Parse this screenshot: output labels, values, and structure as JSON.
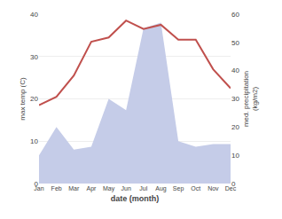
{
  "chart_data": {
    "type": "line",
    "categories": [
      "Jan",
      "Feb",
      "Mar",
      "Apr",
      "May",
      "Jun",
      "Jul",
      "Aug",
      "Sep",
      "Oct",
      "Nov",
      "Dec"
    ],
    "series": [
      {
        "type": "area",
        "axis": "y2",
        "color": "#c5cce8",
        "values": [
          10.0,
          20.0,
          12.0,
          13.0,
          30.0,
          26.0,
          55.0,
          57.0,
          15.0,
          13.0,
          14.0,
          14.0
        ]
      },
      {
        "type": "line",
        "axis": "y",
        "color": "#c0504d",
        "values": [
          18.5,
          20.5,
          25.5,
          33.5,
          34.5,
          38.5,
          36.5,
          37.5,
          34.0,
          34.0,
          27.0,
          22.5
        ]
      }
    ],
    "xlabel": "date (month)",
    "ylabel": "max temp (C)",
    "y2label": "med. precipitation\n(kg/m2)",
    "ylim": [
      0,
      40
    ],
    "yticks": [
      0,
      10,
      20,
      30,
      40
    ],
    "y2lim": [
      0,
      60
    ],
    "y2ticks": [
      0,
      10,
      20,
      30,
      40,
      50,
      60
    ],
    "grid": true
  }
}
